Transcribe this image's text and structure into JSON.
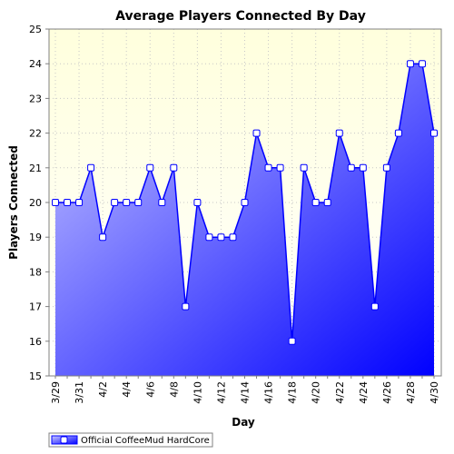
{
  "chart_data": {
    "type": "area",
    "title": "Average Players Connected By Day",
    "xlabel": "Day",
    "ylabel": "Players Connected",
    "ylim": [
      15,
      25
    ],
    "yticks": [
      15,
      16,
      17,
      18,
      19,
      20,
      21,
      22,
      23,
      24,
      25
    ],
    "grid": true,
    "legend_position": "bottom-left",
    "x": [
      "3/29",
      "3/30",
      "3/31",
      "4/1",
      "4/2",
      "4/3",
      "4/4",
      "4/5",
      "4/6",
      "4/7",
      "4/8",
      "4/9",
      "4/10",
      "4/11",
      "4/12",
      "4/13",
      "4/14",
      "4/15",
      "4/16",
      "4/17",
      "4/18",
      "4/19",
      "4/20",
      "4/21",
      "4/22",
      "4/23",
      "4/24",
      "4/25",
      "4/26",
      "4/27",
      "4/28",
      "4/29",
      "4/30"
    ],
    "x_tick_labels": [
      "3/29",
      "",
      "3/31",
      "",
      "4/2",
      "",
      "4/4",
      "",
      "4/6",
      "",
      "4/8",
      "",
      "4/10",
      "",
      "4/12",
      "",
      "4/14",
      "",
      "4/16",
      "",
      "4/18",
      "",
      "4/20",
      "",
      "4/22",
      "",
      "4/24",
      "",
      "4/26",
      "",
      "4/28",
      "",
      "4/30"
    ],
    "series": [
      {
        "name": "Official CoffeeMud HardCore",
        "values": [
          20,
          20,
          20,
          21,
          19,
          20,
          20,
          20,
          21,
          20,
          21,
          17,
          20,
          19,
          19,
          19,
          20,
          22,
          21,
          21,
          16,
          21,
          20,
          20,
          22,
          21,
          21,
          17,
          21,
          22,
          24,
          24,
          22
        ]
      }
    ],
    "colors": {
      "plot_background_top": "#ffffdd",
      "plot_background_bottom": "#ffffff",
      "area_light": "#c8c8ff",
      "area_dark": "#0000ff",
      "line": "#0000ff",
      "marker_fill": "#ffffff",
      "grid": "#c8c8c8"
    }
  }
}
